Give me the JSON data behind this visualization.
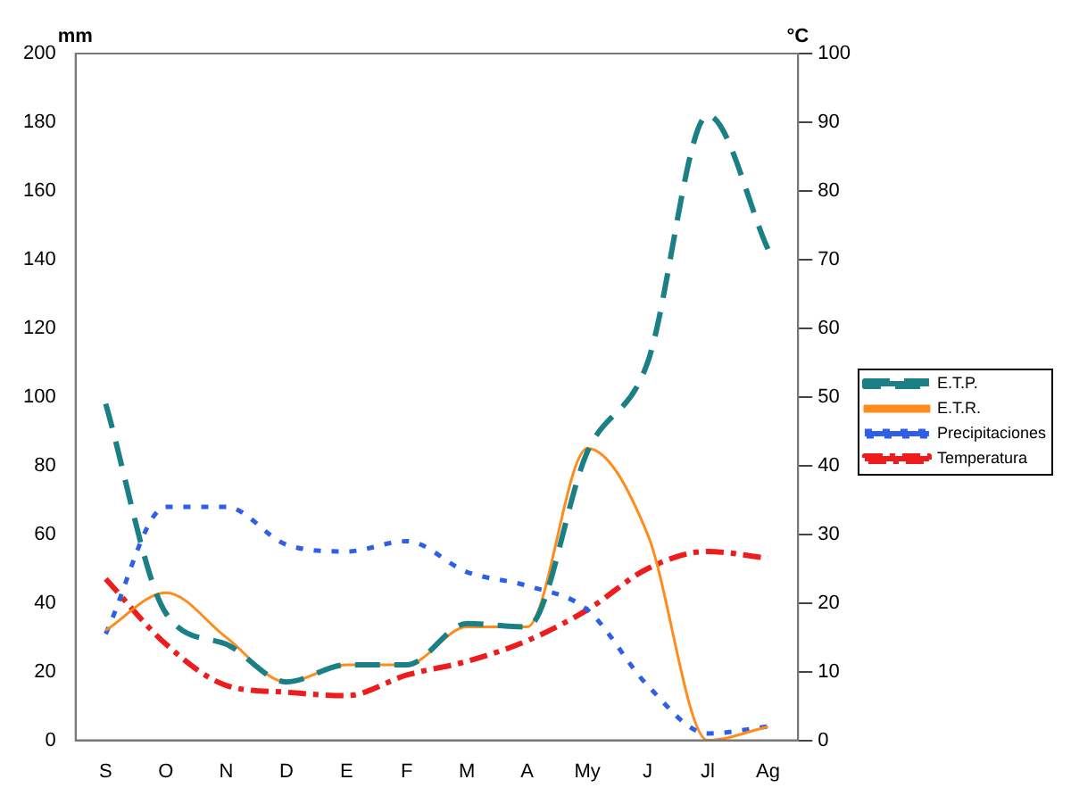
{
  "chart_data": {
    "type": "line",
    "ylabel": "mm",
    "y2label": "°C",
    "categories": [
      "S",
      "O",
      "N",
      "D",
      "E",
      "F",
      "M",
      "A",
      "My",
      "J",
      "Jl",
      "Ag"
    ],
    "series": [
      {
        "name": "E.T.P.",
        "color": "#1b7f86",
        "line_style": "dashed",
        "values": [
          98,
          37,
          28,
          17,
          22,
          22,
          34,
          33,
          84,
          110,
          182,
          143
        ]
      },
      {
        "name": "E.T.R.",
        "color": "#ff8c1a",
        "line_style": "solid",
        "values": [
          32,
          43,
          30,
          17,
          22,
          22,
          33,
          33,
          85,
          60,
          0,
          4
        ]
      },
      {
        "name": "Precipitaciones",
        "color": "#2f5fe8",
        "line_style": "dotted",
        "values": [
          31,
          68,
          68,
          57,
          55,
          58,
          49,
          45,
          38,
          16,
          2,
          4
        ]
      },
      {
        "name": "Temperatura",
        "color": "#ee1c1c",
        "line_style": "dashdot",
        "axis": "y2",
        "values": [
          23.5,
          14,
          8,
          7,
          6.5,
          9.5,
          11.5,
          14.5,
          19,
          25,
          27.5,
          26.5
        ]
      }
    ],
    "ylim": [
      0,
      200
    ],
    "yticks": [
      0,
      20,
      40,
      60,
      80,
      100,
      120,
      140,
      160,
      180,
      200
    ],
    "y2lim": [
      0,
      100
    ],
    "y2ticks": [
      0,
      10,
      20,
      30,
      40,
      50,
      60,
      70,
      80,
      90,
      100
    ],
    "grid": false,
    "legend": "right",
    "marker": "none"
  }
}
